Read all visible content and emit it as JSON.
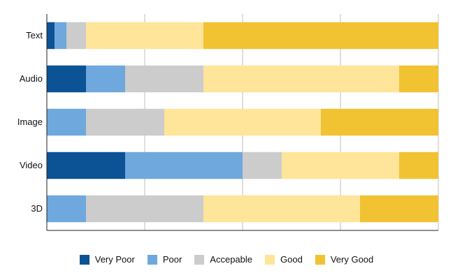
{
  "chart_data": {
    "type": "bar",
    "orientation": "horizontal",
    "stacked": true,
    "categories": [
      "Text",
      "Audio",
      "Image",
      "Video",
      "3D"
    ],
    "series": [
      {
        "name": "Very Poor",
        "color": "#0B5394",
        "values": [
          2,
          10,
          0,
          20,
          0
        ]
      },
      {
        "name": "Poor",
        "color": "#6FA8DC",
        "values": [
          3,
          10,
          10,
          30,
          10
        ]
      },
      {
        "name": "Accepable",
        "color": "#CCCCCC",
        "values": [
          5,
          20,
          20,
          10,
          30
        ]
      },
      {
        "name": "Good",
        "color": "#FFE599",
        "values": [
          30,
          50,
          40,
          30,
          40
        ]
      },
      {
        "name": "Very Good",
        "color": "#F1C232",
        "values": [
          60,
          10,
          30,
          10,
          20
        ]
      }
    ],
    "xlim": [
      0,
      100
    ],
    "xticks": [
      0,
      25,
      50,
      75,
      100
    ],
    "grid": true,
    "legend_position": "bottom",
    "title": "",
    "xlabel": "",
    "ylabel": ""
  }
}
